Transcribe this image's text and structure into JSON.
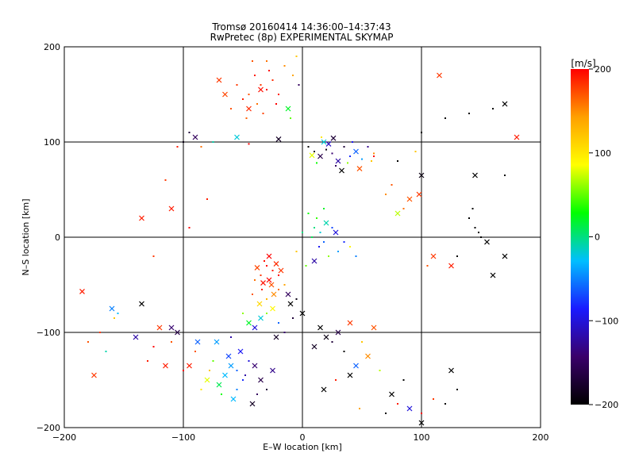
{
  "chart_data": {
    "type": "scatter",
    "title": "Tromsø 20160414 14:36:00–14:37:43",
    "subtitle": "RwPretec (8p) EXPERIMENTAL SKYMAP",
    "xlabel": "E–W location [km]",
    "ylabel": "N–S location [km]",
    "xlim": [
      -200,
      200
    ],
    "ylim": [
      -200,
      200
    ],
    "xticks": [
      -200,
      -100,
      0,
      100,
      200
    ],
    "yticks": [
      -200,
      -100,
      0,
      100,
      200
    ],
    "grid": true,
    "colorbar": {
      "label": "[m/s]",
      "range": [
        -200,
        200
      ],
      "ticks": [
        -200,
        -100,
        0,
        100,
        200
      ],
      "colors": [
        "#000000",
        "#3a006a",
        "#1a1aff",
        "#00bfff",
        "#00ff00",
        "#ffff00",
        "#ffa000",
        "#ff0000"
      ]
    },
    "markers": {
      "x": "cross (larger echo)",
      "dot": "small point"
    },
    "points": [
      [
        -40,
        170,
        190,
        "dot"
      ],
      [
        -35,
        160,
        180,
        "dot"
      ],
      [
        -30,
        155,
        200,
        "dot"
      ],
      [
        -45,
        150,
        170,
        "dot"
      ],
      [
        -25,
        165,
        185,
        "dot"
      ],
      [
        -38,
        140,
        160,
        "dot"
      ],
      [
        -50,
        145,
        190,
        "dot"
      ],
      [
        -28,
        175,
        200,
        "dot"
      ],
      [
        -42,
        185,
        170,
        "dot"
      ],
      [
        -55,
        160,
        180,
        "dot"
      ],
      [
        -20,
        150,
        190,
        "dot"
      ],
      [
        -33,
        130,
        175,
        "dot"
      ],
      [
        -47,
        125,
        165,
        "dot"
      ],
      [
        -22,
        140,
        200,
        "dot"
      ],
      [
        -60,
        135,
        170,
        "dot"
      ],
      [
        -15,
        180,
        150,
        "dot"
      ],
      [
        -70,
        165,
        180,
        "x"
      ],
      [
        -35,
        155,
        195,
        "x"
      ],
      [
        -45,
        135,
        185,
        "x"
      ],
      [
        -65,
        150,
        175,
        "x"
      ],
      [
        -30,
        185,
        160,
        "dot"
      ],
      [
        -8,
        170,
        140,
        "dot"
      ],
      [
        -12,
        135,
        20,
        "x"
      ],
      [
        -10,
        125,
        50,
        "dot"
      ],
      [
        -5,
        190,
        120,
        "dot"
      ],
      [
        -3,
        160,
        -150,
        "dot"
      ],
      [
        5,
        95,
        -200,
        "dot"
      ],
      [
        10,
        90,
        -180,
        "dot"
      ],
      [
        15,
        85,
        -160,
        "x"
      ],
      [
        20,
        92,
        -190,
        "dot"
      ],
      [
        25,
        88,
        -140,
        "dot"
      ],
      [
        30,
        80,
        -120,
        "x"
      ],
      [
        35,
        95,
        -170,
        "dot"
      ],
      [
        22,
        98,
        -110,
        "x"
      ],
      [
        40,
        85,
        -80,
        "dot"
      ],
      [
        45,
        90,
        -60,
        "x"
      ],
      [
        50,
        82,
        -40,
        "dot"
      ],
      [
        28,
        75,
        -150,
        "dot"
      ],
      [
        18,
        100,
        -20,
        "x"
      ],
      [
        33,
        70,
        -200,
        "x"
      ],
      [
        12,
        78,
        30,
        "dot"
      ],
      [
        55,
        95,
        -130,
        "dot"
      ],
      [
        60,
        88,
        150,
        "dot"
      ],
      [
        8,
        86,
        80,
        "x"
      ],
      [
        42,
        100,
        -90,
        "dot"
      ],
      [
        38,
        78,
        60,
        "dot"
      ],
      [
        48,
        72,
        170,
        "x"
      ],
      [
        16,
        105,
        100,
        "dot"
      ],
      [
        26,
        104,
        -170,
        "x"
      ],
      [
        58,
        80,
        120,
        "dot"
      ],
      [
        -100,
        100,
        -190,
        "dot"
      ],
      [
        -95,
        110,
        -170,
        "dot"
      ],
      [
        -90,
        105,
        -150,
        "x"
      ],
      [
        -105,
        95,
        190,
        "dot"
      ],
      [
        -75,
        100,
        -10,
        "dot"
      ],
      [
        -55,
        105,
        -20,
        "x"
      ],
      [
        -45,
        98,
        200,
        "dot"
      ],
      [
        -20,
        103,
        -180,
        "x"
      ],
      [
        -85,
        95,
        160,
        "dot"
      ],
      [
        100,
        110,
        -200,
        "dot"
      ],
      [
        120,
        125,
        -200,
        "dot"
      ],
      [
        140,
        130,
        -200,
        "dot"
      ],
      [
        170,
        140,
        -200,
        "x"
      ],
      [
        180,
        105,
        190,
        "x"
      ],
      [
        115,
        170,
        180,
        "x"
      ],
      [
        160,
        135,
        -200,
        "dot"
      ],
      [
        95,
        90,
        120,
        "dot"
      ],
      [
        100,
        65,
        -190,
        "x"
      ],
      [
        98,
        45,
        180,
        "x"
      ],
      [
        90,
        40,
        170,
        "x"
      ],
      [
        145,
        65,
        -200,
        "x"
      ],
      [
        170,
        65,
        -200,
        "dot"
      ],
      [
        80,
        80,
        -200,
        "dot"
      ],
      [
        75,
        55,
        170,
        "dot"
      ],
      [
        80,
        25,
        70,
        "x"
      ],
      [
        60,
        85,
        200,
        "dot"
      ],
      [
        70,
        45,
        150,
        "dot"
      ],
      [
        85,
        30,
        160,
        "dot"
      ],
      [
        140,
        20,
        -200,
        "dot"
      ],
      [
        145,
        10,
        -200,
        "dot"
      ],
      [
        150,
        0,
        -200,
        "dot"
      ],
      [
        155,
        -5,
        -200,
        "x"
      ],
      [
        143,
        30,
        -200,
        "dot"
      ],
      [
        148,
        5,
        -200,
        "dot"
      ],
      [
        170,
        -20,
        -200,
        "x"
      ],
      [
        160,
        -40,
        -200,
        "x"
      ],
      [
        130,
        -20,
        -200,
        "dot"
      ],
      [
        125,
        -30,
        190,
        "x"
      ],
      [
        110,
        -20,
        180,
        "x"
      ],
      [
        105,
        -30,
        170,
        "dot"
      ],
      [
        -135,
        20,
        190,
        "x"
      ],
      [
        -110,
        30,
        190,
        "x"
      ],
      [
        -115,
        60,
        180,
        "dot"
      ],
      [
        -95,
        10,
        200,
        "dot"
      ],
      [
        -80,
        40,
        190,
        "dot"
      ],
      [
        -125,
        -20,
        180,
        "dot"
      ],
      [
        10,
        10,
        0,
        "dot"
      ],
      [
        15,
        5,
        -20,
        "dot"
      ],
      [
        12,
        20,
        40,
        "dot"
      ],
      [
        18,
        -5,
        -60,
        "dot"
      ],
      [
        8,
        0,
        10,
        "dot"
      ],
      [
        20,
        15,
        -10,
        "x"
      ],
      [
        5,
        25,
        30,
        "dot"
      ],
      [
        25,
        10,
        -70,
        "dot"
      ],
      [
        14,
        -10,
        -90,
        "dot"
      ],
      [
        22,
        -20,
        60,
        "dot"
      ],
      [
        30,
        -15,
        -40,
        "dot"
      ],
      [
        3,
        -30,
        50,
        "dot"
      ],
      [
        28,
        5,
        -100,
        "x"
      ],
      [
        35,
        -5,
        -80,
        "dot"
      ],
      [
        10,
        -25,
        -120,
        "x"
      ],
      [
        40,
        -10,
        90,
        "dot"
      ],
      [
        45,
        -20,
        -50,
        "dot"
      ],
      [
        18,
        30,
        20,
        "dot"
      ],
      [
        -5,
        -15,
        120,
        "dot"
      ],
      [
        0,
        5,
        0,
        "dot"
      ],
      [
        -30,
        -30,
        200,
        "dot"
      ],
      [
        -25,
        -35,
        190,
        "dot"
      ],
      [
        -35,
        -40,
        180,
        "dot"
      ],
      [
        -28,
        -45,
        200,
        "x"
      ],
      [
        -22,
        -28,
        185,
        "x"
      ],
      [
        -32,
        -25,
        195,
        "dot"
      ],
      [
        -38,
        -32,
        175,
        "x"
      ],
      [
        -20,
        -40,
        200,
        "dot"
      ],
      [
        -26,
        -50,
        170,
        "x"
      ],
      [
        -34,
        -55,
        190,
        "dot"
      ],
      [
        -18,
        -35,
        180,
        "x"
      ],
      [
        -40,
        -45,
        160,
        "dot"
      ],
      [
        -24,
        -60,
        150,
        "x"
      ],
      [
        -30,
        -65,
        130,
        "dot"
      ],
      [
        -36,
        -70,
        110,
        "x"
      ],
      [
        -15,
        -50,
        140,
        "dot"
      ],
      [
        -42,
        -60,
        170,
        "dot"
      ],
      [
        -28,
        -20,
        200,
        "x"
      ],
      [
        -20,
        -55,
        160,
        "dot"
      ],
      [
        -33,
        -48,
        195,
        "x"
      ],
      [
        -25,
        -75,
        90,
        "x"
      ],
      [
        -30,
        -80,
        60,
        "dot"
      ],
      [
        -35,
        -85,
        -20,
        "x"
      ],
      [
        -20,
        -90,
        -60,
        "dot"
      ],
      [
        -40,
        -95,
        -100,
        "x"
      ],
      [
        -15,
        -100,
        -140,
        "dot"
      ],
      [
        -22,
        -105,
        -180,
        "x"
      ],
      [
        -10,
        -70,
        -200,
        "x"
      ],
      [
        -5,
        -65,
        -190,
        "dot"
      ],
      [
        0,
        -80,
        -200,
        "x"
      ],
      [
        -8,
        -85,
        -170,
        "dot"
      ],
      [
        -12,
        -60,
        -150,
        "x"
      ],
      [
        -50,
        -80,
        60,
        "dot"
      ],
      [
        -45,
        -90,
        20,
        "x"
      ],
      [
        -55,
        -140,
        -60,
        "dot"
      ],
      [
        -60,
        -135,
        -40,
        "x"
      ],
      [
        -50,
        -150,
        -80,
        "dot"
      ],
      [
        -65,
        -145,
        -30,
        "x"
      ],
      [
        -45,
        -130,
        -100,
        "dot"
      ],
      [
        -70,
        -155,
        10,
        "x"
      ],
      [
        -55,
        -160,
        -50,
        "dot"
      ],
      [
        -62,
        -125,
        -70,
        "x"
      ],
      [
        -48,
        -145,
        -120,
        "dot"
      ],
      [
        -40,
        -135,
        -140,
        "x"
      ],
      [
        -58,
        -170,
        -30,
        "x"
      ],
      [
        -75,
        -130,
        50,
        "dot"
      ],
      [
        -68,
        -165,
        30,
        "dot"
      ],
      [
        -52,
        -120,
        -90,
        "x"
      ],
      [
        -35,
        -150,
        -160,
        "x"
      ],
      [
        -30,
        -160,
        -170,
        "dot"
      ],
      [
        -42,
        -175,
        -180,
        "x"
      ],
      [
        -38,
        -165,
        -150,
        "dot"
      ],
      [
        -25,
        -140,
        -130,
        "x"
      ],
      [
        -80,
        -150,
        80,
        "x"
      ],
      [
        -85,
        -160,
        100,
        "dot"
      ],
      [
        -78,
        -140,
        120,
        "dot"
      ],
      [
        -90,
        -120,
        170,
        "dot"
      ],
      [
        -95,
        -135,
        190,
        "x"
      ],
      [
        -100,
        -140,
        200,
        "dot"
      ],
      [
        -88,
        -110,
        -60,
        "x"
      ],
      [
        -72,
        -110,
        -40,
        "x"
      ],
      [
        -60,
        -105,
        -120,
        "dot"
      ],
      [
        -105,
        -100,
        -160,
        "x"
      ],
      [
        -110,
        -95,
        -140,
        "x"
      ],
      [
        -160,
        -75,
        -50,
        "x"
      ],
      [
        -155,
        -80,
        -30,
        "dot"
      ],
      [
        -158,
        -85,
        120,
        "dot"
      ],
      [
        -170,
        -100,
        180,
        "dot"
      ],
      [
        -185,
        -57,
        190,
        "x"
      ],
      [
        -165,
        -120,
        -10,
        "dot"
      ],
      [
        -175,
        -145,
        180,
        "x"
      ],
      [
        -180,
        -110,
        170,
        "dot"
      ],
      [
        -135,
        -70,
        -200,
        "x"
      ],
      [
        -120,
        -95,
        180,
        "x"
      ],
      [
        -110,
        -110,
        170,
        "dot"
      ],
      [
        -115,
        -135,
        190,
        "x"
      ],
      [
        -125,
        -115,
        200,
        "dot"
      ],
      [
        -140,
        -105,
        -120,
        "x"
      ],
      [
        -130,
        -130,
        190,
        "dot"
      ],
      [
        15,
        -95,
        -200,
        "x"
      ],
      [
        20,
        -105,
        -190,
        "x"
      ],
      [
        25,
        -110,
        -170,
        "dot"
      ],
      [
        10,
        -115,
        -180,
        "x"
      ],
      [
        30,
        -100,
        -160,
        "x"
      ],
      [
        35,
        -120,
        -200,
        "dot"
      ],
      [
        40,
        -90,
        180,
        "x"
      ],
      [
        45,
        -135,
        -60,
        "x"
      ],
      [
        50,
        -110,
        120,
        "dot"
      ],
      [
        55,
        -125,
        150,
        "x"
      ],
      [
        60,
        -95,
        170,
        "x"
      ],
      [
        65,
        -140,
        70,
        "dot"
      ],
      [
        18,
        -160,
        -200,
        "x"
      ],
      [
        28,
        -150,
        190,
        "dot"
      ],
      [
        40,
        -145,
        -200,
        "x"
      ],
      [
        48,
        -180,
        140,
        "dot"
      ],
      [
        70,
        -185,
        -200,
        "dot"
      ],
      [
        80,
        -175,
        190,
        "dot"
      ],
      [
        90,
        -180,
        -100,
        "x"
      ],
      [
        75,
        -165,
        -200,
        "x"
      ],
      [
        85,
        -150,
        -200,
        "dot"
      ],
      [
        100,
        -185,
        200,
        "dot"
      ],
      [
        100,
        -195,
        -200,
        "x"
      ],
      [
        110,
        -170,
        180,
        "dot"
      ],
      [
        120,
        -175,
        -200,
        "dot"
      ],
      [
        130,
        -160,
        -200,
        "dot"
      ],
      [
        125,
        -140,
        -200,
        "x"
      ]
    ]
  }
}
